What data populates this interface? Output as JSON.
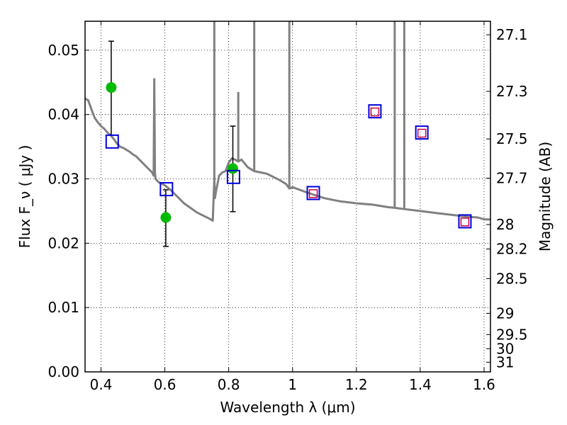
{
  "chart_data": {
    "type": "scatter",
    "xlabel": "Wavelength  λ (μm)",
    "ylabel": "Flux  F_ν  ( μJy )",
    "y2label": "Magnitude (AB)",
    "xlim": [
      0.35,
      1.62
    ],
    "ylim": [
      0.0,
      0.0545
    ],
    "grid": true,
    "x_ticks": [
      0.4,
      0.6,
      0.8,
      1.0,
      1.2,
      1.4,
      1.6
    ],
    "x_tick_labels": [
      "0.4",
      "0.6",
      "0.8",
      "1",
      "1.2",
      "1.4",
      "1.6"
    ],
    "y_ticks": [
      0.0,
      0.01,
      0.02,
      0.03,
      0.04,
      0.05
    ],
    "y_tick_labels": [
      "0.00",
      "0.01",
      "0.02",
      "0.03",
      "0.04",
      "0.05"
    ],
    "mag_ticks": [
      {
        "value": 0.0524,
        "label": "27.1"
      },
      {
        "value": 0.0436,
        "label": "27.3"
      },
      {
        "value": 0.0362,
        "label": "27.5"
      },
      {
        "value": 0.0301,
        "label": "27.7"
      },
      {
        "value": 0.0229,
        "label": "28"
      },
      {
        "value": 0.0191,
        "label": "28.2"
      },
      {
        "value": 0.0145,
        "label": "28.5"
      },
      {
        "value": 0.0091,
        "label": "29"
      },
      {
        "value": 0.0058,
        "label": "29.5"
      },
      {
        "value": 0.0036,
        "label": "30"
      },
      {
        "value": 0.0015,
        "label": "31"
      }
    ],
    "series": [
      {
        "kind": "line",
        "color": "#808080",
        "x": [
          0.35,
          0.36,
          0.37,
          0.38,
          0.39,
          0.4,
          0.41,
          0.42,
          0.43,
          0.44,
          0.45,
          0.46,
          0.47,
          0.48,
          0.49,
          0.5,
          0.51,
          0.52,
          0.53,
          0.54,
          0.55,
          0.56,
          0.565,
          0.567,
          0.569,
          0.571,
          0.58,
          0.6,
          0.62,
          0.64,
          0.66,
          0.68,
          0.7,
          0.72,
          0.74,
          0.75,
          0.755,
          0.757,
          0.76,
          0.77,
          0.78,
          0.79,
          0.8,
          0.81,
          0.82,
          0.83,
          0.84,
          0.86,
          0.88,
          0.9,
          0.92,
          0.94,
          0.96,
          0.98,
          0.99,
          1.0,
          1.05,
          1.1,
          1.15,
          1.2,
          1.25,
          1.3,
          1.32,
          1.35,
          1.4,
          1.45,
          1.5,
          1.55,
          1.58,
          1.6,
          1.62
        ],
        "y": [
          0.0425,
          0.0422,
          0.0408,
          0.0395,
          0.0388,
          0.0382,
          0.0378,
          0.0372,
          0.0368,
          0.0362,
          0.0355,
          0.035,
          0.0348,
          0.0345,
          0.0342,
          0.0338,
          0.0335,
          0.033,
          0.0325,
          0.032,
          0.0315,
          0.031,
          0.0305,
          0.0455,
          0.031,
          0.03,
          0.0295,
          0.029,
          0.0282,
          0.0272,
          0.0262,
          0.0255,
          0.0248,
          0.0243,
          0.0238,
          0.0235,
          0.03,
          0.027,
          0.028,
          0.0305,
          0.031,
          0.0312,
          0.0325,
          0.0332,
          0.033,
          0.0327,
          0.033,
          0.0318,
          0.0312,
          0.031,
          0.0308,
          0.0303,
          0.0298,
          0.0292,
          0.0285,
          0.0287,
          0.0278,
          0.027,
          0.0265,
          0.0262,
          0.026,
          0.0256,
          0.0255,
          0.0253,
          0.025,
          0.0247,
          0.0244,
          0.0241,
          0.024,
          0.0237,
          0.0237
        ],
        "spikes": [
          {
            "x": 0.755,
            "top": 0.0545
          },
          {
            "x": 0.83,
            "top": 0.0435
          },
          {
            "x": 0.88,
            "top": 0.0545
          },
          {
            "x": 0.99,
            "top": 0.0545
          },
          {
            "x": 1.32,
            "top": 0.0545
          },
          {
            "x": 1.35,
            "top": 0.0545
          }
        ]
      },
      {
        "kind": "points-with-errorbars",
        "color": "#00bb00",
        "points": [
          {
            "x": 0.432,
            "y": 0.0442,
            "err_low": 0.0368,
            "err_high": 0.0514
          },
          {
            "x": 0.603,
            "y": 0.024,
            "err_low": 0.0195,
            "err_high": 0.0283
          },
          {
            "x": 0.813,
            "y": 0.0316,
            "err_low": 0.0249,
            "err_high": 0.0382
          }
        ]
      },
      {
        "kind": "open-squares",
        "color": "#0000dd",
        "points": [
          {
            "x": 0.435,
            "y": 0.0358
          },
          {
            "x": 0.605,
            "y": 0.0284
          },
          {
            "x": 0.815,
            "y": 0.0303
          },
          {
            "x": 1.065,
            "y": 0.0278
          },
          {
            "x": 1.258,
            "y": 0.0405
          },
          {
            "x": 1.405,
            "y": 0.0372
          },
          {
            "x": 1.54,
            "y": 0.0234
          }
        ]
      },
      {
        "kind": "open-squares-small",
        "color": "#cc0044",
        "points": [
          {
            "x": 1.065,
            "y": 0.0277
          },
          {
            "x": 1.258,
            "y": 0.0404
          },
          {
            "x": 1.405,
            "y": 0.0371
          },
          {
            "x": 1.54,
            "y": 0.0233
          }
        ]
      }
    ]
  }
}
